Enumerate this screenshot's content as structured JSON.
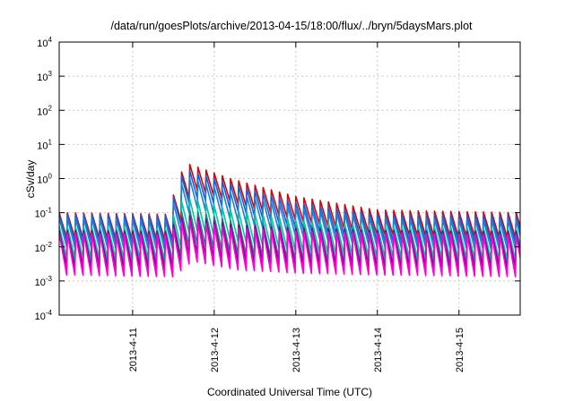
{
  "chart_data": {
    "type": "line",
    "title": "/data/run/goesPlots/archive/2013-04-15/18:00/flux/../bryn/5daysMars.plot",
    "xlabel": "Coordinated Universal Time (UTC)",
    "ylabel": "cSv/day",
    "y_scale": "log",
    "ylim": [
      0.0001,
      10000
    ],
    "xlim": [
      10.1,
      15.75
    ],
    "grid": true,
    "y_ticks": [
      {
        "value": 0.0001,
        "base": "10",
        "exp": "-4"
      },
      {
        "value": 0.001,
        "base": "10",
        "exp": "-3"
      },
      {
        "value": 0.01,
        "base": "10",
        "exp": "-2"
      },
      {
        "value": 0.1,
        "base": "10",
        "exp": "-1"
      },
      {
        "value": 1,
        "base": "10",
        "exp": "0"
      },
      {
        "value": 10,
        "base": "10",
        "exp": "1"
      },
      {
        "value": 100,
        "base": "10",
        "exp": "2"
      },
      {
        "value": 1000,
        "base": "10",
        "exp": "3"
      },
      {
        "value": 10000,
        "base": "10",
        "exp": "4"
      }
    ],
    "x_ticks": [
      {
        "value": 11,
        "label": "2013-4-11"
      },
      {
        "value": 12,
        "label": "2013-4-12"
      },
      {
        "value": 13,
        "label": "2013-4-13"
      },
      {
        "value": 14,
        "label": "2013-4-14"
      },
      {
        "value": 15,
        "label": "2013-4-15"
      }
    ],
    "sawtooth_period_days": 0.1,
    "event_start_day": 11.5,
    "series": [
      {
        "color": "#e00000",
        "peaks": [
          [
            10.1,
            0.1
          ],
          [
            11.45,
            0.09
          ],
          [
            11.55,
            1.2
          ],
          [
            11.7,
            2.6
          ],
          [
            12.2,
            1.0
          ],
          [
            13.0,
            0.3
          ],
          [
            14.0,
            0.12
          ],
          [
            15.75,
            0.1
          ]
        ],
        "trough_factor": 0.18
      },
      {
        "color": "#1060e0",
        "peaks": [
          [
            10.1,
            0.09
          ],
          [
            11.45,
            0.08
          ],
          [
            11.55,
            1.0
          ],
          [
            11.7,
            1.7
          ],
          [
            12.2,
            0.7
          ],
          [
            13.0,
            0.2
          ],
          [
            14.0,
            0.09
          ],
          [
            15.75,
            0.08
          ]
        ],
        "trough_factor": 0.16
      },
      {
        "color": "#2080d0",
        "peaks": [
          [
            10.1,
            0.07
          ],
          [
            11.45,
            0.06
          ],
          [
            11.55,
            0.6
          ],
          [
            11.7,
            1.0
          ],
          [
            12.2,
            0.4
          ],
          [
            13.0,
            0.14
          ],
          [
            14.0,
            0.07
          ],
          [
            15.75,
            0.06
          ]
        ],
        "trough_factor": 0.14
      },
      {
        "color": "#00c8a0",
        "peaks": [
          [
            10.1,
            0.04
          ],
          [
            11.45,
            0.035
          ],
          [
            11.55,
            0.2
          ],
          [
            11.7,
            0.25
          ],
          [
            12.2,
            0.12
          ],
          [
            13.0,
            0.06
          ],
          [
            14.0,
            0.04
          ],
          [
            15.75,
            0.035
          ]
        ],
        "trough_factor": 0.12
      },
      {
        "color": "#208080",
        "peaks": [
          [
            10.1,
            0.03
          ],
          [
            11.45,
            0.028
          ],
          [
            11.55,
            0.1
          ],
          [
            11.7,
            0.12
          ],
          [
            12.2,
            0.06
          ],
          [
            13.0,
            0.04
          ],
          [
            14.0,
            0.03
          ],
          [
            15.75,
            0.028
          ]
        ],
        "trough_factor": 0.1
      },
      {
        "color": "#8000a0",
        "peaks": [
          [
            10.1,
            0.03
          ],
          [
            11.45,
            0.028
          ],
          [
            11.55,
            0.07
          ],
          [
            11.7,
            0.08
          ],
          [
            12.2,
            0.045
          ],
          [
            13.0,
            0.035
          ],
          [
            14.0,
            0.03
          ],
          [
            15.75,
            0.028
          ]
        ],
        "trough_factor": 0.08
      },
      {
        "color": "#ff00d0",
        "peaks": [
          [
            10.1,
            0.025
          ],
          [
            11.45,
            0.022
          ],
          [
            11.55,
            0.05
          ],
          [
            11.7,
            0.06
          ],
          [
            12.2,
            0.035
          ],
          [
            13.0,
            0.028
          ],
          [
            14.0,
            0.025
          ],
          [
            15.75,
            0.022
          ]
        ],
        "trough_factor": 0.06
      }
    ]
  }
}
